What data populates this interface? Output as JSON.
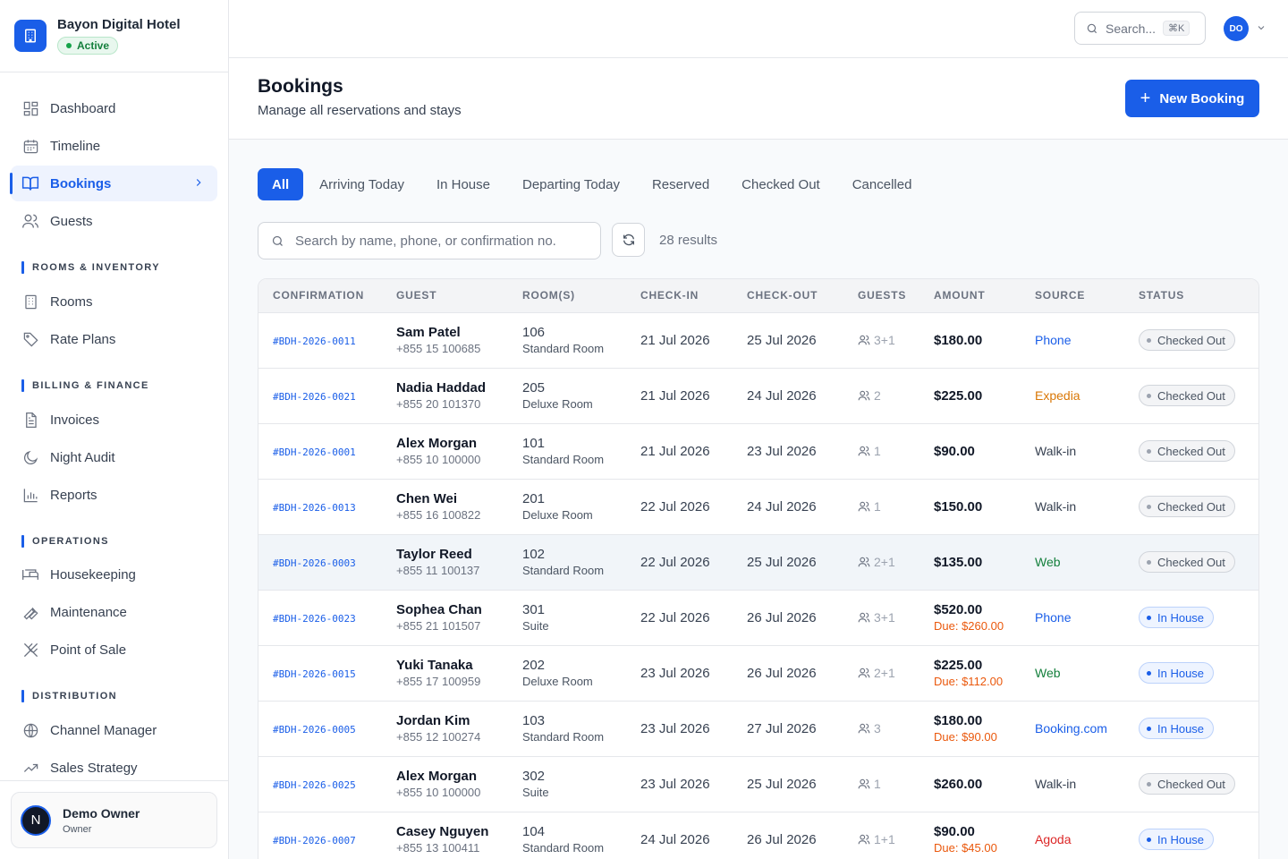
{
  "brand": {
    "name": "Bayon Digital Hotel",
    "status": "Active"
  },
  "nav": {
    "dashboard": "Dashboard",
    "timeline": "Timeline",
    "bookings": "Bookings",
    "guests": "Guests",
    "sections": {
      "rooms": "ROOMS & INVENTORY",
      "billing": "BILLING & FINANCE",
      "operations": "OPERATIONS",
      "distribution": "DISTRIBUTION"
    },
    "rooms": "Rooms",
    "rate_plans": "Rate Plans",
    "invoices": "Invoices",
    "night_audit": "Night Audit",
    "reports": "Reports",
    "housekeeping": "Housekeeping",
    "maintenance": "Maintenance",
    "pos": "Point of Sale",
    "channel_manager": "Channel Manager",
    "sales_strategy": "Sales Strategy"
  },
  "user": {
    "initial": "N",
    "name": "Demo Owner",
    "role": "Owner"
  },
  "topbar": {
    "search_label": "Search...",
    "shortcut": "⌘K",
    "avatar": "DO"
  },
  "header": {
    "title": "Bookings",
    "subtitle": "Manage all reservations and stays",
    "new_booking": "New Booking"
  },
  "tabs": [
    "All",
    "Arriving Today",
    "In House",
    "Departing Today",
    "Reserved",
    "Checked Out",
    "Cancelled"
  ],
  "search": {
    "placeholder": "Search by name, phone, or confirmation no.",
    "results": "28 results"
  },
  "table": {
    "headers": [
      "CONFIRMATION",
      "GUEST",
      "ROOM(S)",
      "CHECK-IN",
      "CHECK-OUT",
      "GUESTS",
      "AMOUNT",
      "SOURCE",
      "STATUS"
    ],
    "rows": [
      {
        "conf": "#BDH-2026-0011",
        "name": "Sam Patel",
        "phone": "+855 15 100685",
        "room": "106",
        "room_type": "Standard Room",
        "checkin": "21 Jul 2026",
        "checkout": "25 Jul 2026",
        "guests": "3+1",
        "amount": "$180.00",
        "due": "",
        "source": "Phone",
        "status": "Checked Out"
      },
      {
        "conf": "#BDH-2026-0021",
        "name": "Nadia Haddad",
        "phone": "+855 20 101370",
        "room": "205",
        "room_type": "Deluxe Room",
        "checkin": "21 Jul 2026",
        "checkout": "24 Jul 2026",
        "guests": "2",
        "amount": "$225.00",
        "due": "",
        "source": "Expedia",
        "status": "Checked Out"
      },
      {
        "conf": "#BDH-2026-0001",
        "name": "Alex Morgan",
        "phone": "+855 10 100000",
        "room": "101",
        "room_type": "Standard Room",
        "checkin": "21 Jul 2026",
        "checkout": "23 Jul 2026",
        "guests": "1",
        "amount": "$90.00",
        "due": "",
        "source": "Walk-in",
        "status": "Checked Out"
      },
      {
        "conf": "#BDH-2026-0013",
        "name": "Chen Wei",
        "phone": "+855 16 100822",
        "room": "201",
        "room_type": "Deluxe Room",
        "checkin": "22 Jul 2026",
        "checkout": "24 Jul 2026",
        "guests": "1",
        "amount": "$150.00",
        "due": "",
        "source": "Walk-in",
        "status": "Checked Out"
      },
      {
        "conf": "#BDH-2026-0003",
        "name": "Taylor Reed",
        "phone": "+855 11 100137",
        "room": "102",
        "room_type": "Standard Room",
        "checkin": "22 Jul 2026",
        "checkout": "25 Jul 2026",
        "guests": "2+1",
        "amount": "$135.00",
        "due": "",
        "source": "Web",
        "status": "Checked Out"
      },
      {
        "conf": "#BDH-2026-0023",
        "name": "Sophea Chan",
        "phone": "+855 21 101507",
        "room": "301",
        "room_type": "Suite",
        "checkin": "22 Jul 2026",
        "checkout": "26 Jul 2026",
        "guests": "3+1",
        "amount": "$520.00",
        "due": "Due: $260.00",
        "source": "Phone",
        "status": "In House"
      },
      {
        "conf": "#BDH-2026-0015",
        "name": "Yuki Tanaka",
        "phone": "+855 17 100959",
        "room": "202",
        "room_type": "Deluxe Room",
        "checkin": "23 Jul 2026",
        "checkout": "26 Jul 2026",
        "guests": "2+1",
        "amount": "$225.00",
        "due": "Due: $112.00",
        "source": "Web",
        "status": "In House"
      },
      {
        "conf": "#BDH-2026-0005",
        "name": "Jordan Kim",
        "phone": "+855 12 100274",
        "room": "103",
        "room_type": "Standard Room",
        "checkin": "23 Jul 2026",
        "checkout": "27 Jul 2026",
        "guests": "3",
        "amount": "$180.00",
        "due": "Due: $90.00",
        "source": "Booking.com",
        "status": "In House"
      },
      {
        "conf": "#BDH-2026-0025",
        "name": "Alex Morgan",
        "phone": "+855 10 100000",
        "room": "302",
        "room_type": "Suite",
        "checkin": "23 Jul 2026",
        "checkout": "25 Jul 2026",
        "guests": "1",
        "amount": "$260.00",
        "due": "",
        "source": "Walk-in",
        "status": "Checked Out"
      },
      {
        "conf": "#BDH-2026-0007",
        "name": "Casey Nguyen",
        "phone": "+855 13 100411",
        "room": "104",
        "room_type": "Standard Room",
        "checkin": "24 Jul 2026",
        "checkout": "26 Jul 2026",
        "guests": "1+1",
        "amount": "$90.00",
        "due": "Due: $45.00",
        "source": "Agoda",
        "status": "In House"
      }
    ]
  },
  "colors": {
    "accent": "#1a5ee8",
    "source_phone": "#1a5ee8",
    "source_expedia": "#d97706",
    "source_walkin": "#374151",
    "source_web": "#15803d",
    "source_booking": "#1a5ee8",
    "source_agoda": "#dc2626"
  }
}
